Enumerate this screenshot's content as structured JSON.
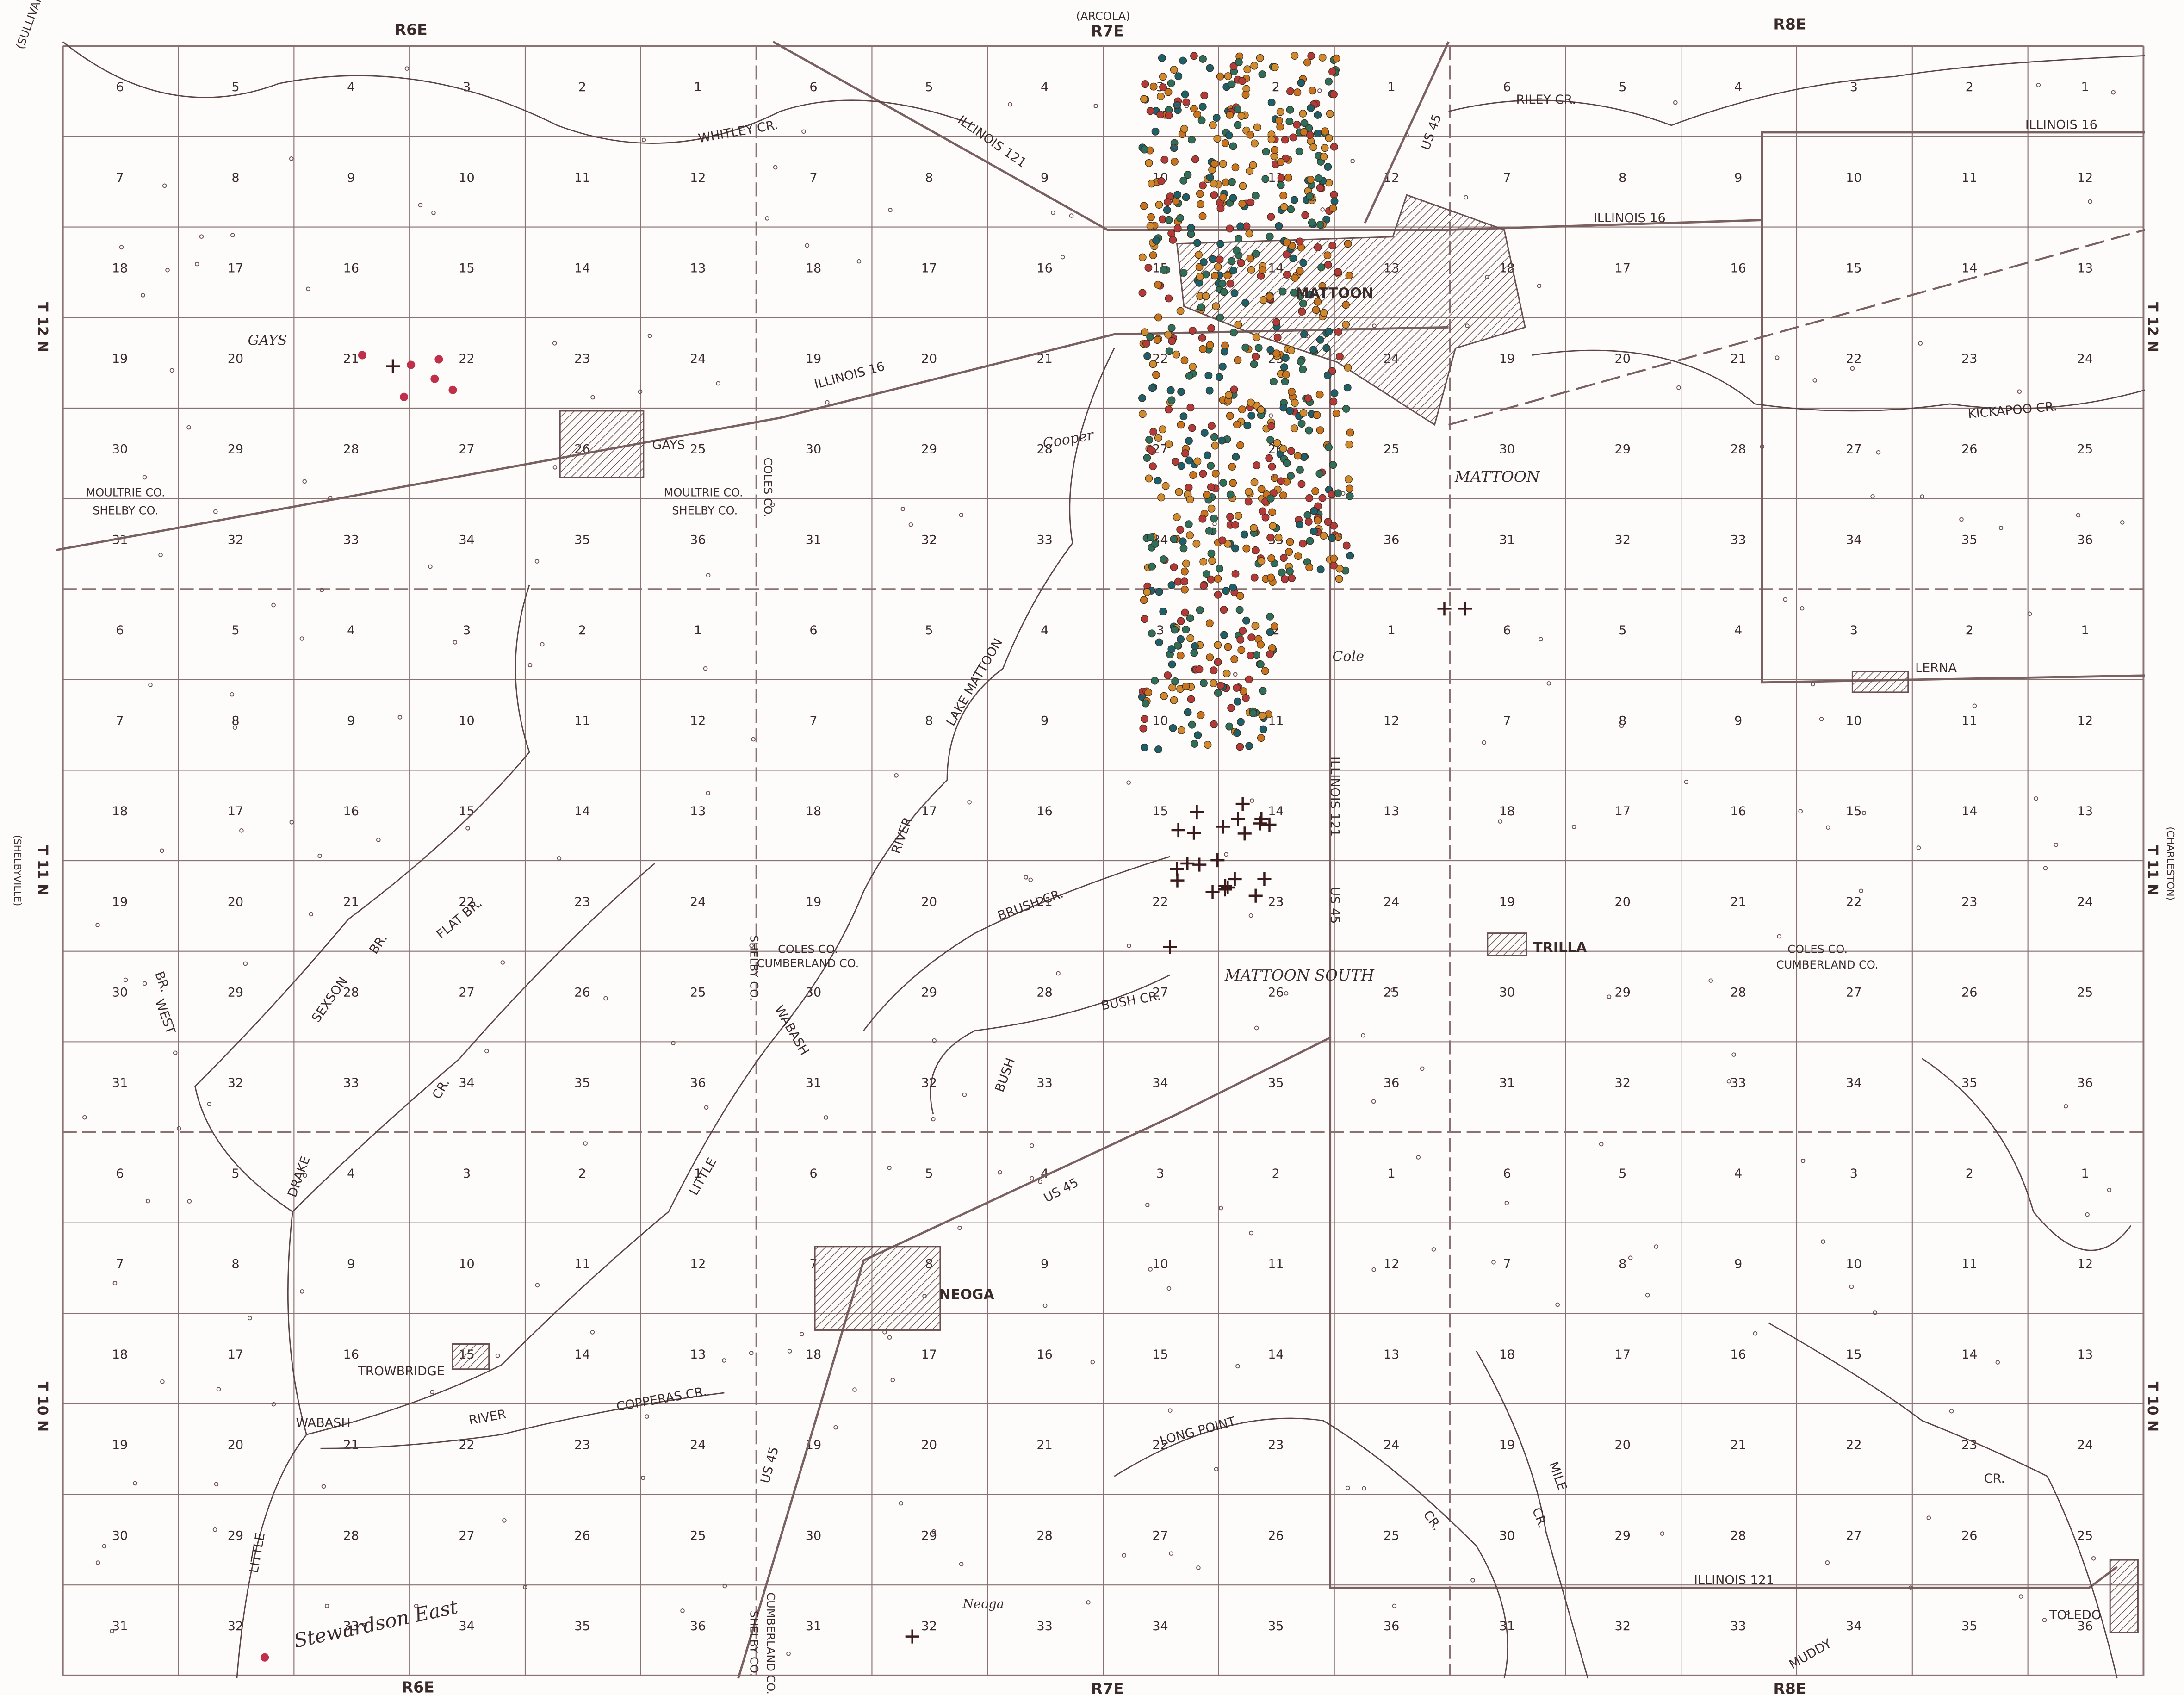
{
  "sections": [
    [
      6,
      5,
      4,
      3,
      2,
      1,
      6,
      5,
      4,
      3,
      2,
      1,
      6,
      5,
      4,
      3,
      2,
      1
    ],
    [
      7,
      8,
      9,
      10,
      11,
      12,
      7,
      8,
      9,
      10,
      11,
      12,
      7,
      8,
      9,
      10,
      11,
      12
    ],
    [
      18,
      17,
      16,
      15,
      14,
      13,
      18,
      17,
      16,
      15,
      14,
      13,
      18,
      17,
      16,
      15,
      14,
      13
    ],
    [
      19,
      20,
      21,
      22,
      23,
      24,
      19,
      20,
      21,
      22,
      23,
      24,
      19,
      20,
      21,
      22,
      23,
      24
    ],
    [
      30,
      29,
      28,
      27,
      26,
      25,
      30,
      29,
      28,
      27,
      26,
      25,
      30,
      29,
      28,
      27,
      26,
      25
    ],
    [
      31,
      32,
      33,
      34,
      35,
      36,
      31,
      32,
      33,
      34,
      35,
      36,
      31,
      32,
      33,
      34,
      35,
      36
    ],
    [
      6,
      5,
      4,
      3,
      2,
      1,
      6,
      5,
      4,
      3,
      2,
      1,
      6,
      5,
      4,
      3,
      2,
      1
    ],
    [
      7,
      8,
      9,
      10,
      11,
      12,
      7,
      8,
      9,
      10,
      11,
      12,
      7,
      8,
      9,
      10,
      11,
      12
    ],
    [
      18,
      17,
      16,
      15,
      14,
      13,
      18,
      17,
      16,
      15,
      14,
      13,
      18,
      17,
      16,
      15,
      14,
      13
    ],
    [
      19,
      20,
      21,
      22,
      23,
      24,
      19,
      20,
      21,
      22,
      23,
      24,
      19,
      20,
      21,
      22,
      23,
      24
    ],
    [
      30,
      29,
      28,
      27,
      26,
      25,
      30,
      29,
      28,
      27,
      26,
      25,
      30,
      29,
      28,
      27,
      26,
      25
    ],
    [
      31,
      32,
      33,
      34,
      35,
      36,
      31,
      32,
      33,
      34,
      35,
      36,
      31,
      32,
      33,
      34,
      35,
      36
    ],
    [
      6,
      5,
      4,
      3,
      2,
      1,
      6,
      5,
      4,
      3,
      2,
      1,
      6,
      5,
      4,
      3,
      2,
      1
    ],
    [
      7,
      8,
      9,
      10,
      11,
      12,
      7,
      8,
      9,
      10,
      11,
      12,
      7,
      8,
      9,
      10,
      11,
      12
    ],
    [
      18,
      17,
      16,
      15,
      14,
      13,
      18,
      17,
      16,
      15,
      14,
      13,
      18,
      17,
      16,
      15,
      14,
      13
    ],
    [
      19,
      20,
      21,
      22,
      23,
      24,
      19,
      20,
      21,
      22,
      23,
      24,
      19,
      20,
      21,
      22,
      23,
      24
    ],
    [
      30,
      29,
      28,
      27,
      26,
      25,
      30,
      29,
      28,
      27,
      26,
      25,
      30,
      29,
      28,
      27,
      26,
      25
    ],
    [
      31,
      32,
      33,
      34,
      35,
      36,
      31,
      32,
      33,
      34,
      35,
      36,
      31,
      32,
      33,
      34,
      35,
      36
    ]
  ],
  "labels": [
    "(SULLIVAN)",
    "R6E",
    "(ARCOLA)",
    "R7E",
    "R8E",
    "R6E",
    "R7E",
    "R8E",
    "T 12 N",
    "T 12 N",
    "T 11 N",
    "T 11 N",
    "T 10 N",
    "T 10 N",
    "(SHELBYVILLE)",
    "(CHARLESTON)",
    "GAYS",
    "GAYS",
    "MATTOON",
    "MATTOON",
    "LERNA",
    "TRILLA",
    "MATTOON SOUTH",
    "NEOGA",
    "TROWBRIDGE",
    "TOLEDO",
    "Stewardson East",
    "Cole",
    "Cooper",
    "Neoga",
    "MOULTRIE CO.",
    "SHELBY CO.",
    "MOULTRIE CO.",
    "SHELBY CO.",
    "COLES CO.",
    "COLES CO.",
    "CUMBERLAND CO.",
    "SHELBY CO.",
    "COLES CO.",
    "CUMBERLAND CO.",
    "SHELBY CO.",
    "CUMBERLAND CO.",
    "ILLINOIS 121",
    "ILLINOIS 16",
    "ILLINOIS 16",
    "ILLINOIS 16",
    "US 45",
    "US 45",
    "ILLINOIS 121",
    "US 45",
    "US 45",
    "ILLINOIS 121",
    "WHITLEY CR.",
    "RILEY CR.",
    "KICKAPOO CR.",
    "LAKE MATTOON",
    "RIVER",
    "BRUSH CR.",
    "BUSH CR.",
    "BUSH",
    "LITTLE",
    "WABASH",
    "WEST",
    "BR.",
    "SEXSON",
    "BR.",
    "FLAT BR.",
    "CR.",
    "DRAKE",
    "LONG POINT",
    "CR.",
    "MUDDY",
    "CR.",
    "MILE",
    "CR.",
    "COPPERAS CR.",
    "WABASH",
    "RIVER",
    "LITTLE"
  ]
}
